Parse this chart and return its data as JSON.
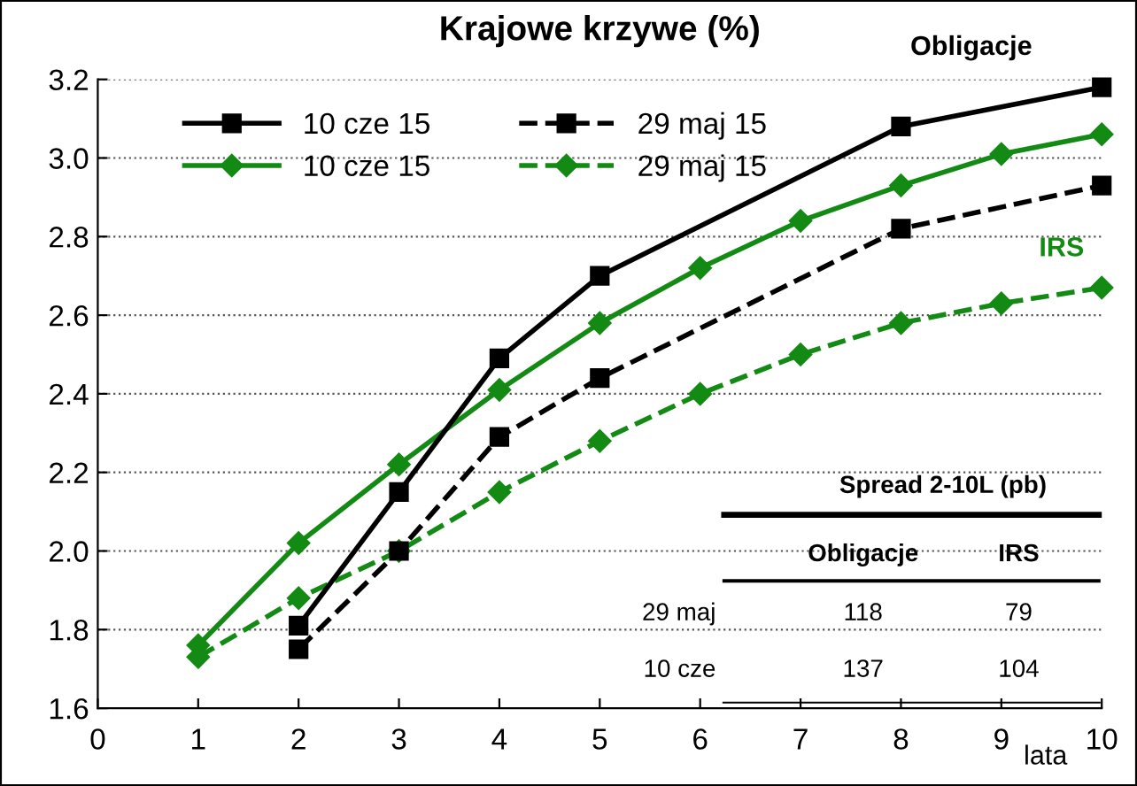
{
  "chart_data": {
    "type": "line",
    "title": "Krajowe krzywe (%)",
    "xlabel": "lata",
    "xlim": [
      0,
      10
    ],
    "xticks": [
      0,
      1,
      2,
      3,
      4,
      5,
      6,
      7,
      8,
      9,
      10
    ],
    "ylim": [
      1.6,
      3.2
    ],
    "yticks": [
      {
        "value": 1.6,
        "label": "1.6"
      },
      {
        "value": 1.8,
        "label": "1.8"
      },
      {
        "value": 2.0,
        "label": "2.0"
      },
      {
        "value": 2.2,
        "label": "2.2"
      },
      {
        "value": 2.4,
        "label": "2.4"
      },
      {
        "value": 2.6,
        "label": "2.6"
      },
      {
        "value": 2.8,
        "label": "2.8"
      },
      {
        "value": 3.0,
        "label": "3.0"
      },
      {
        "value": 3.2,
        "label": "3.2"
      }
    ],
    "grid": "y",
    "legend": "top left",
    "series": [
      {
        "name": "10 cze 15",
        "color": "#000000",
        "marker": "square",
        "line_style": "solid",
        "x": [
          2,
          3,
          4,
          5,
          8,
          10
        ],
        "values": [
          1.81,
          2.15,
          2.49,
          2.7,
          3.08,
          3.18
        ]
      },
      {
        "name": "29 maj 15",
        "color": "#000000",
        "marker": "square",
        "line_style": "dashed",
        "x": [
          2,
          3,
          4,
          5,
          8,
          10
        ],
        "values": [
          1.75,
          2.0,
          2.29,
          2.44,
          2.82,
          2.93
        ]
      },
      {
        "name": "10 cze 15",
        "color": "#138a13",
        "marker": "diamond",
        "line_style": "solid",
        "x": [
          1,
          2,
          3,
          4,
          5,
          6,
          7,
          8,
          9,
          10
        ],
        "values": [
          1.76,
          2.02,
          2.22,
          2.41,
          2.58,
          2.72,
          2.84,
          2.93,
          3.01,
          3.06
        ]
      },
      {
        "name": "29 maj 15",
        "color": "#138a13",
        "marker": "diamond",
        "line_style": "dashed",
        "x": [
          1,
          2,
          3,
          4,
          5,
          6,
          7,
          8,
          9,
          10
        ],
        "values": [
          1.73,
          1.88,
          2.0,
          2.15,
          2.28,
          2.4,
          2.5,
          2.58,
          2.63,
          2.67
        ]
      }
    ],
    "annotations": [
      "Obligacje",
      "IRS",
      "Spread 2-10L (pb)",
      "Obligacje",
      "IRS",
      "29 maj",
      "118",
      "79",
      "10 cze",
      "137",
      "104"
    ]
  }
}
